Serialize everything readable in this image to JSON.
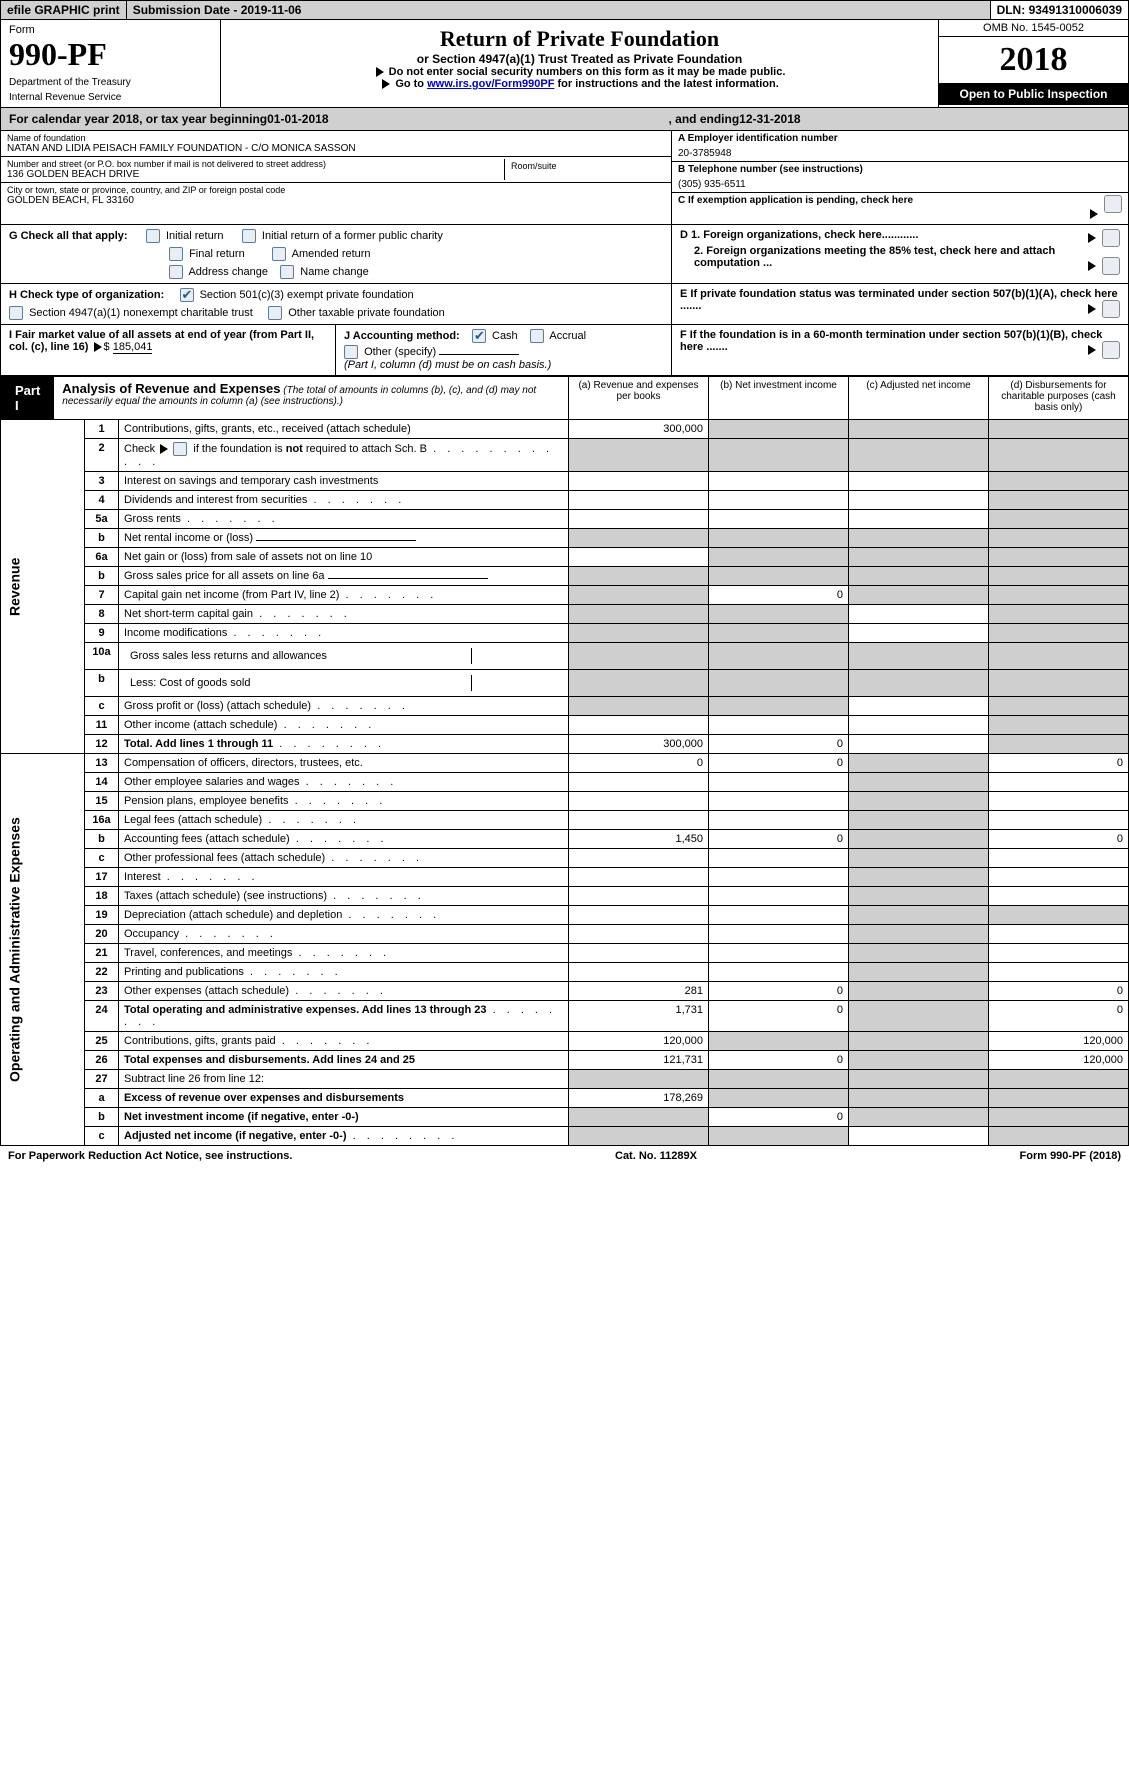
{
  "topbar": {
    "efile": "efile GRAPHIC print",
    "submission_label": "Submission Date - ",
    "submission_date": "2019-11-06",
    "dln_label": "DLN: ",
    "dln": "93491310006039"
  },
  "header": {
    "form_label": "Form",
    "form_number": "990-PF",
    "dept1": "Department of the Treasury",
    "dept2": "Internal Revenue Service",
    "title": "Return of Private Foundation",
    "subtitle": "or Section 4947(a)(1) Trust Treated as Private Foundation",
    "note1": "Do not enter social security numbers on this form as it may be made public.",
    "note2_pre": "Go to ",
    "note2_link": "www.irs.gov/Form990PF",
    "note2_post": " for instructions and the latest information.",
    "omb": "OMB No. 1545-0052",
    "year": "2018",
    "open": "Open to Public Inspection"
  },
  "cal": {
    "pre": "For calendar year 2018, or tax year beginning ",
    "begin": "01-01-2018",
    "mid": ", and ending ",
    "end": "12-31-2018"
  },
  "info": {
    "name_lbl": "Name of foundation",
    "name": "NATAN AND LIDIA PEISACH FAMILY FOUNDATION - C/O MONICA SASSON",
    "addr_lbl": "Number and street (or P.O. box number if mail is not delivered to street address)",
    "addr": "136 GOLDEN BEACH DRIVE",
    "room_lbl": "Room/suite",
    "city_lbl": "City or town, state or province, country, and ZIP or foreign postal code",
    "city": "GOLDEN BEACH, FL  33160",
    "ein_lbl": "A Employer identification number",
    "ein": "20-3785948",
    "tel_lbl": "B Telephone number (see instructions)",
    "tel": "(305) 935-6511",
    "c": "C If exemption application is pending, check here",
    "d1": "D 1. Foreign organizations, check here............",
    "d2": "2. Foreign organizations meeting the 85% test, check here and attach computation ...",
    "e": "E If private foundation status was terminated under section 507(b)(1)(A), check here .......",
    "f": "F If the foundation is in a 60-month termination under section 507(b)(1)(B), check here .......",
    "g_lbl": "G Check all that apply:",
    "g_opts": [
      "Initial return",
      "Initial return of a former public charity",
      "Final return",
      "Amended return",
      "Address change",
      "Name change"
    ],
    "h_lbl": "H Check type of organization:",
    "h1": "Section 501(c)(3) exempt private foundation",
    "h2": "Section 4947(a)(1) nonexempt charitable trust",
    "h3": "Other taxable private foundation",
    "i_lbl": "I Fair market value of all assets at end of year (from Part II, col. (c), line 16)",
    "i_val": "185,041",
    "j_lbl": "J Accounting method:",
    "j_cash": "Cash",
    "j_accrual": "Accrual",
    "j_other": "Other (specify)",
    "j_note": "(Part I, column (d) must be on cash basis.)"
  },
  "part1": {
    "tab": "Part I",
    "title": "Analysis of Revenue and Expenses",
    "title_note": " (The total of amounts in columns (b), (c), and (d) may not necessarily equal the amounts in column (a) (see instructions).)",
    "col_a": "(a) Revenue and expenses per books",
    "col_b": "(b) Net investment income",
    "col_c": "(c) Adjusted net income",
    "col_d": "(d) Disbursements for charitable purposes (cash basis only)",
    "vlabel_rev": "Revenue",
    "vlabel_exp": "Operating and Administrative Expenses"
  },
  "rows": [
    {
      "n": "1",
      "d": "Contributions, gifts, grants, etc., received (attach schedule)",
      "a": "300,000",
      "ash": false,
      "bsh": true,
      "csh": true,
      "dsh": true
    },
    {
      "n": "2",
      "d": "Check ▶ ☐ if the foundation is not required to attach Sch. B",
      "dots": true,
      "a": "",
      "ash": true,
      "bsh": true,
      "csh": true,
      "dsh": true,
      "bold_not": true
    },
    {
      "n": "3",
      "d": "Interest on savings and temporary cash investments",
      "a": "",
      "b": "",
      "c": "",
      "dsh": true
    },
    {
      "n": "4",
      "d": "Dividends and interest from securities",
      "dots": true,
      "a": "",
      "b": "",
      "c": "",
      "dsh": true
    },
    {
      "n": "5a",
      "d": "Gross rents",
      "dots": true,
      "a": "",
      "b": "",
      "c": "",
      "dsh": true
    },
    {
      "n": "b",
      "d": "Net rental income or (loss)",
      "underline": true,
      "ash": true,
      "bsh": true,
      "csh": true,
      "dsh": true
    },
    {
      "n": "6a",
      "d": "Net gain or (loss) from sale of assets not on line 10",
      "a": "",
      "bsh": true,
      "csh": true,
      "dsh": true
    },
    {
      "n": "b",
      "d": "Gross sales price for all assets on line 6a",
      "underline": true,
      "ash": true,
      "bsh": true,
      "csh": true,
      "dsh": true
    },
    {
      "n": "7",
      "d": "Capital gain net income (from Part IV, line 2)",
      "dots": true,
      "ash": true,
      "b": "0",
      "csh": true,
      "dsh": true
    },
    {
      "n": "8",
      "d": "Net short-term capital gain",
      "dots": true,
      "ash": true,
      "bsh": true,
      "c": "",
      "dsh": true
    },
    {
      "n": "9",
      "d": "Income modifications",
      "dots": true,
      "ash": true,
      "bsh": true,
      "c": "",
      "dsh": true
    },
    {
      "n": "10a",
      "d": "Gross sales less returns and allowances",
      "sub": true,
      "ash": true,
      "bsh": true,
      "csh": true,
      "dsh": true
    },
    {
      "n": "b",
      "d": "Less: Cost of goods sold",
      "dots": true,
      "sub": true,
      "ash": true,
      "bsh": true,
      "csh": true,
      "dsh": true
    },
    {
      "n": "c",
      "d": "Gross profit or (loss) (attach schedule)",
      "dots": true,
      "ash": true,
      "bsh": true,
      "c": "",
      "dsh": true
    },
    {
      "n": "11",
      "d": "Other income (attach schedule)",
      "dots": true,
      "a": "",
      "b": "",
      "c": "",
      "dsh": true
    },
    {
      "n": "12",
      "d": "Total. Add lines 1 through 11",
      "dots": true,
      "bold": true,
      "a": "300,000",
      "b": "0",
      "c": "",
      "dsh": true
    }
  ],
  "exprows": [
    {
      "n": "13",
      "d": "Compensation of officers, directors, trustees, etc.",
      "a": "0",
      "b": "0",
      "csh": true,
      "dd": "0"
    },
    {
      "n": "14",
      "d": "Other employee salaries and wages",
      "dots": true,
      "a": "",
      "b": "",
      "csh": true,
      "dd": ""
    },
    {
      "n": "15",
      "d": "Pension plans, employee benefits",
      "dots": true,
      "a": "",
      "b": "",
      "csh": true,
      "dd": ""
    },
    {
      "n": "16a",
      "d": "Legal fees (attach schedule)",
      "dots": true,
      "a": "",
      "b": "",
      "csh": true,
      "dd": ""
    },
    {
      "n": "b",
      "d": "Accounting fees (attach schedule)",
      "dots": true,
      "a": "1,450",
      "b": "0",
      "csh": true,
      "dd": "0"
    },
    {
      "n": "c",
      "d": "Other professional fees (attach schedule)",
      "dots": true,
      "a": "",
      "b": "",
      "csh": true,
      "dd": ""
    },
    {
      "n": "17",
      "d": "Interest",
      "dots": true,
      "a": "",
      "b": "",
      "csh": true,
      "dd": ""
    },
    {
      "n": "18",
      "d": "Taxes (attach schedule) (see instructions)",
      "dots": true,
      "a": "",
      "b": "",
      "csh": true,
      "dd": ""
    },
    {
      "n": "19",
      "d": "Depreciation (attach schedule) and depletion",
      "dots": true,
      "a": "",
      "b": "",
      "csh": true,
      "dsh": true
    },
    {
      "n": "20",
      "d": "Occupancy",
      "dots": true,
      "a": "",
      "b": "",
      "csh": true,
      "dd": ""
    },
    {
      "n": "21",
      "d": "Travel, conferences, and meetings",
      "dots": true,
      "a": "",
      "b": "",
      "csh": true,
      "dd": ""
    },
    {
      "n": "22",
      "d": "Printing and publications",
      "dots": true,
      "a": "",
      "b": "",
      "csh": true,
      "dd": ""
    },
    {
      "n": "23",
      "d": "Other expenses (attach schedule)",
      "dots": true,
      "a": "281",
      "b": "0",
      "csh": true,
      "dd": "0"
    },
    {
      "n": "24",
      "d": "Total operating and administrative expenses. Add lines 13 through 23",
      "dots": true,
      "bold": true,
      "a": "1,731",
      "b": "0",
      "csh": true,
      "dd": "0"
    },
    {
      "n": "25",
      "d": "Contributions, gifts, grants paid",
      "dots": true,
      "a": "120,000",
      "bsh": true,
      "csh": true,
      "dd": "120,000"
    },
    {
      "n": "26",
      "d": "Total expenses and disbursements. Add lines 24 and 25",
      "bold": true,
      "a": "121,731",
      "b": "0",
      "csh": true,
      "dd": "120,000"
    },
    {
      "n": "27",
      "d": "Subtract line 26 from line 12:",
      "ash": true,
      "bsh": true,
      "csh": true,
      "dsh": true
    },
    {
      "n": "a",
      "d": "Excess of revenue over expenses and disbursements",
      "bold": true,
      "a": "178,269",
      "bsh": true,
      "csh": true,
      "dsh": true
    },
    {
      "n": "b",
      "d": "Net investment income (if negative, enter -0-)",
      "bold": true,
      "ash": true,
      "b": "0",
      "csh": true,
      "dsh": true
    },
    {
      "n": "c",
      "d": "Adjusted net income (if negative, enter -0-)",
      "dots": true,
      "bold": true,
      "ash": true,
      "bsh": true,
      "c": "",
      "dsh": true
    }
  ],
  "footer": {
    "left": "For Paperwork Reduction Act Notice, see instructions.",
    "mid": "Cat. No. 11289X",
    "right": "Form 990-PF (2018)"
  },
  "colors": {
    "topbar_bg": "#d0d0d0",
    "shade": "#cfcfcf",
    "link": "#0000cc",
    "black": "#000000",
    "cbox_border": "#5a7ca0",
    "cbox_bg": "#e8eef4"
  }
}
